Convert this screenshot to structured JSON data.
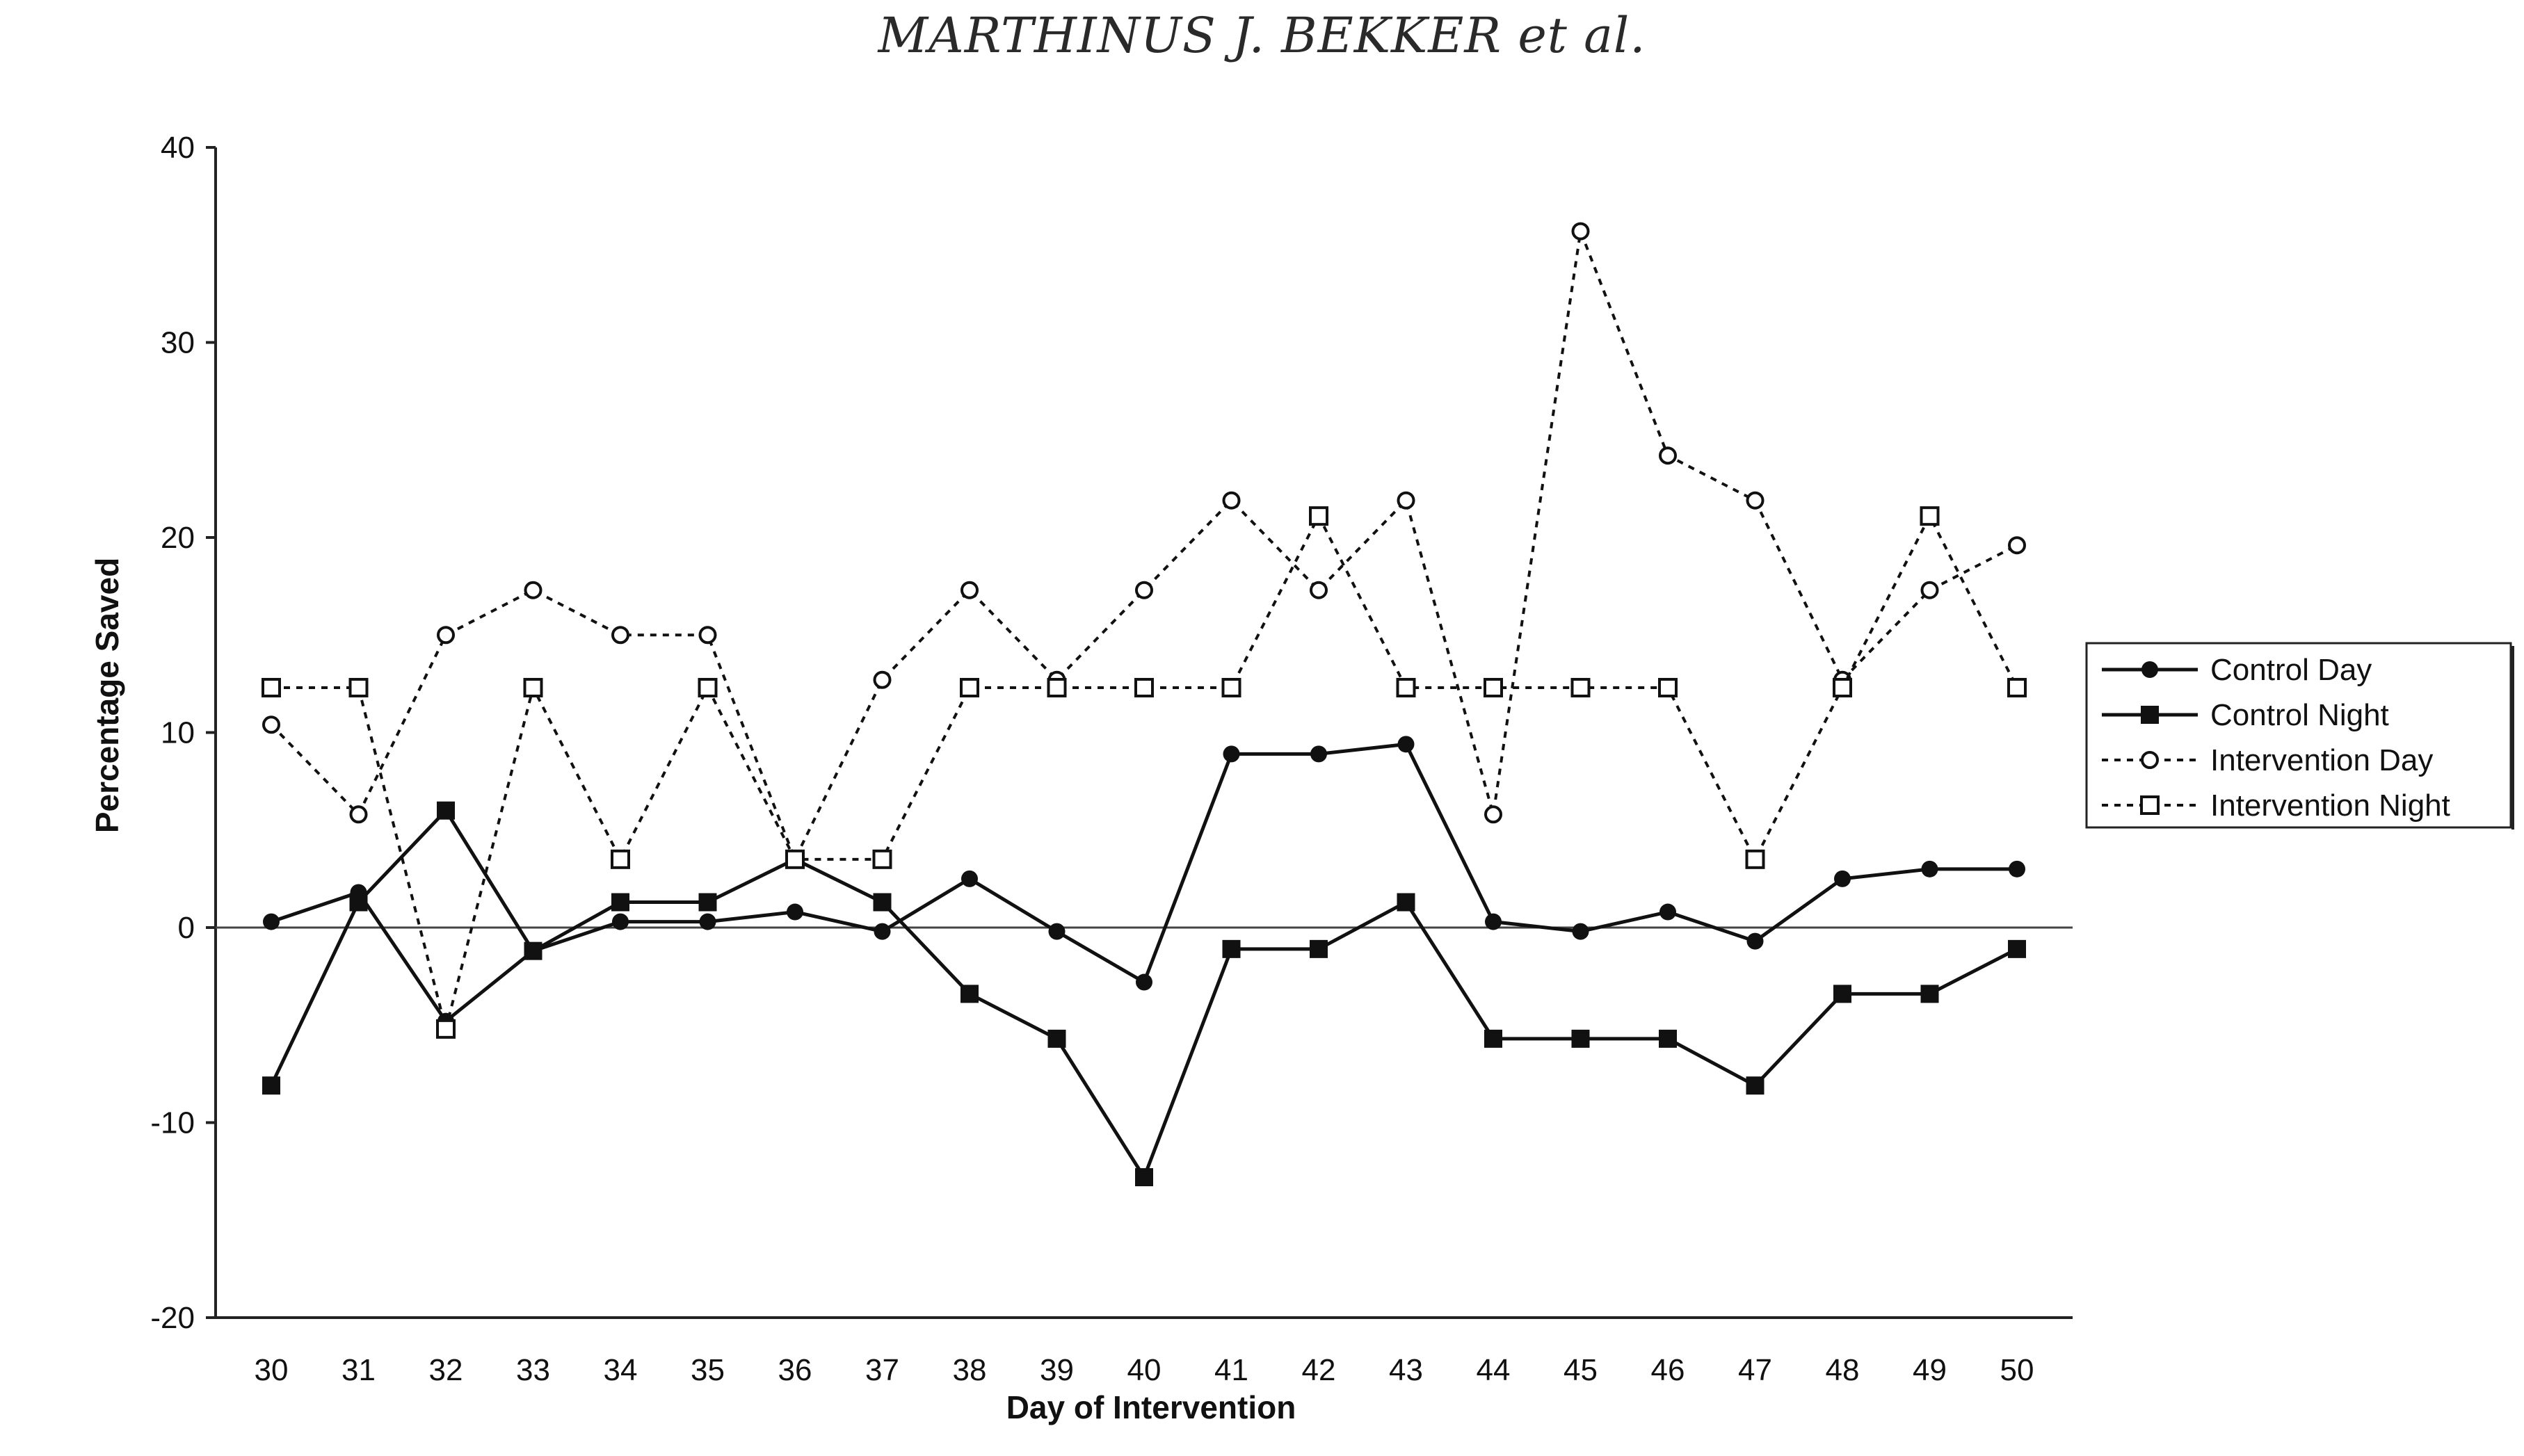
{
  "page": {
    "header": "MARTHINUS J. BEKKER et al."
  },
  "chart_data": {
    "type": "line",
    "title": "",
    "xlabel": "Day of Intervention",
    "ylabel": "Percentage Saved",
    "x": [
      30,
      31,
      32,
      33,
      34,
      35,
      36,
      37,
      38,
      39,
      40,
      41,
      42,
      43,
      44,
      45,
      46,
      47,
      48,
      49,
      50
    ],
    "ylim": [
      -20,
      40
    ],
    "yticks": [
      -20,
      -10,
      0,
      10,
      20,
      30,
      40
    ],
    "legend_position": "right",
    "series": [
      {
        "name": "Control Day",
        "style": "solid",
        "marker": "filled-circle",
        "color": "#111111",
        "values": [
          0.3,
          1.8,
          -4.8,
          -1.2,
          0.3,
          0.3,
          0.8,
          -0.2,
          2.5,
          -0.2,
          -2.8,
          8.9,
          8.9,
          9.4,
          0.3,
          -0.2,
          0.8,
          -0.7,
          2.5,
          3.0,
          3.0
        ]
      },
      {
        "name": "Control Night",
        "style": "solid",
        "marker": "filled-square",
        "color": "#111111",
        "values": [
          -8.1,
          1.3,
          6.0,
          -1.2,
          1.3,
          1.3,
          3.5,
          1.3,
          -3.4,
          -5.7,
          -12.8,
          -1.1,
          -1.1,
          1.3,
          -5.7,
          -5.7,
          -5.7,
          -8.1,
          -3.4,
          -3.4,
          -1.1
        ]
      },
      {
        "name": "Intervention Day",
        "style": "dotted",
        "marker": "open-circle",
        "color": "#111111",
        "values": [
          10.4,
          5.8,
          15.0,
          17.3,
          15.0,
          15.0,
          3.5,
          12.7,
          17.3,
          12.7,
          17.3,
          21.9,
          17.3,
          21.9,
          5.8,
          35.7,
          24.2,
          21.9,
          12.7,
          17.3,
          19.6
        ]
      },
      {
        "name": "Intervention Night",
        "style": "dotted",
        "marker": "open-square",
        "color": "#111111",
        "values": [
          12.3,
          12.3,
          -5.2,
          12.3,
          3.5,
          12.3,
          3.5,
          3.5,
          12.3,
          12.3,
          12.3,
          12.3,
          21.1,
          12.3,
          12.3,
          12.3,
          12.3,
          3.5,
          12.3,
          21.1,
          12.3
        ]
      }
    ]
  }
}
